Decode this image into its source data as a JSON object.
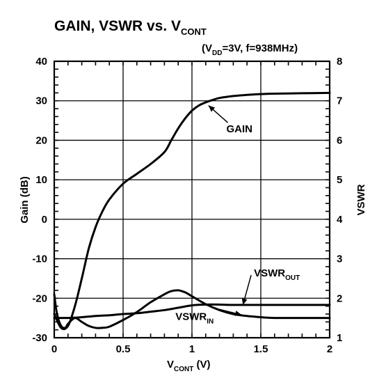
{
  "chart_data": {
    "type": "line",
    "title": {
      "main": "GAIN, VSWR vs. V",
      "sub": "CONT"
    },
    "conditions": {
      "open": "(V",
      "sub": "DD",
      "rest": "=3V, f=938MHz)"
    },
    "xlabel": {
      "main": "V",
      "sub": "CONT",
      "rest": " (V)"
    },
    "ylabel_left": "Gain (dB)",
    "ylabel_right": "VSWR",
    "xlim": [
      0,
      2
    ],
    "ylim_left": [
      -30,
      40
    ],
    "ylim_right": [
      1,
      8
    ],
    "grid": true,
    "x_ticks": [
      "0",
      "0.5",
      "1",
      "1.5",
      "2"
    ],
    "x_tick_values": [
      0,
      0.5,
      1,
      1.5,
      2
    ],
    "y_left_ticks": [
      "40",
      "30",
      "20",
      "10",
      "0",
      "-10",
      "-20",
      "-30"
    ],
    "y_left_tick_values": [
      40,
      30,
      20,
      10,
      0,
      -10,
      -20,
      -30
    ],
    "y_right_ticks": [
      "8",
      "7",
      "6",
      "5",
      "4",
      "3",
      "2",
      "1"
    ],
    "y_right_tick_values": [
      8,
      7,
      6,
      5,
      4,
      3,
      2,
      1
    ],
    "series": [
      {
        "name": "GAIN",
        "axis": "left",
        "x": [
          0.0,
          0.05,
          0.1,
          0.15,
          0.2,
          0.25,
          0.3,
          0.35,
          0.4,
          0.5,
          0.6,
          0.7,
          0.8,
          0.85,
          0.9,
          0.95,
          1.0,
          1.05,
          1.1,
          1.15,
          1.2,
          1.3,
          1.4,
          1.5,
          1.6,
          1.8,
          2.0
        ],
        "y": [
          -24,
          -27.5,
          -27,
          -22,
          -15,
          -7.5,
          -2,
          2,
          5,
          9,
          11.5,
          14,
          17,
          20,
          23,
          25.5,
          27.5,
          28.8,
          29.6,
          30.2,
          30.7,
          31.2,
          31.5,
          31.7,
          31.8,
          31.9,
          32
        ]
      },
      {
        "name": "VSWR",
        "sub": "IN",
        "axis": "right",
        "x": [
          0.0,
          0.02,
          0.05,
          0.08,
          0.1,
          0.15,
          0.2,
          0.25,
          0.3,
          0.35,
          0.4,
          0.5,
          0.6,
          0.7,
          0.8,
          0.85,
          0.9,
          0.95,
          1.0,
          1.1,
          1.2,
          1.3,
          1.4,
          1.5,
          1.6,
          1.8,
          2.0
        ],
        "y": [
          2.1,
          1.6,
          1.3,
          1.25,
          1.35,
          1.5,
          1.4,
          1.3,
          1.25,
          1.25,
          1.28,
          1.45,
          1.65,
          1.9,
          2.1,
          2.18,
          2.2,
          2.15,
          2.05,
          1.85,
          1.7,
          1.6,
          1.55,
          1.52,
          1.5,
          1.5,
          1.5
        ]
      },
      {
        "name": "VSWR",
        "sub": "OUT",
        "axis": "right",
        "x": [
          0.0,
          0.1,
          0.2,
          0.3,
          0.4,
          0.5,
          0.6,
          0.7,
          0.8,
          0.9,
          1.0,
          1.1,
          1.2,
          1.3,
          1.5,
          1.7,
          2.0
        ],
        "y": [
          1.5,
          1.5,
          1.52,
          1.55,
          1.57,
          1.6,
          1.62,
          1.66,
          1.7,
          1.76,
          1.82,
          1.84,
          1.84,
          1.83,
          1.83,
          1.83,
          1.83
        ]
      }
    ],
    "annotations": [
      {
        "text": "GAIN",
        "sub": "",
        "axis": "left",
        "point": [
          1.12,
          28.8
        ],
        "label_at": [
          1.25,
          22
        ]
      },
      {
        "text": "VSWR",
        "sub": "OUT",
        "axis": "right",
        "point": [
          1.37,
          1.83
        ],
        "label_at": [
          1.45,
          2.55
        ]
      },
      {
        "text": "VSWR",
        "sub": "IN",
        "axis": "right",
        "point": [
          1.36,
          1.58
        ],
        "label_at": [
          0.88,
          1.45
        ]
      }
    ]
  }
}
